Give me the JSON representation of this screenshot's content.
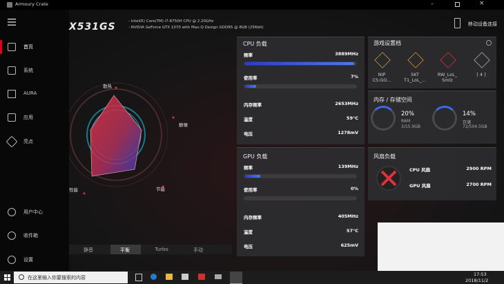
{
  "window": {
    "title": "Armoury Crate"
  },
  "sidebar": {
    "items": [
      "首页",
      "系统",
      "AURA",
      "应用",
      "亮点"
    ],
    "bottom_items": [
      "用户中心",
      "收件箱",
      "设置"
    ]
  },
  "header": {
    "model": "X531GS",
    "specs": [
      "Intel(R) Core(TM) i7-8750H CPU @ 2.20GHz",
      "NVIDIA GeForce GTX 1070 with Max-Q Design GDDR5 @ 8GB (256bit)"
    ],
    "mobile_link": "移动设备连接"
  },
  "radar": {
    "labels": [
      "散热",
      "静噪",
      "节能",
      "性能"
    ]
  },
  "modes": {
    "tabs": [
      "静音",
      "平衡",
      "Turbo",
      "手动"
    ]
  },
  "cpu": {
    "title": "CPU 负载",
    "rows": [
      {
        "label": "频率",
        "value": "3889MHz"
      },
      {
        "label": "使用率",
        "value": "7%"
      },
      {
        "label": "内存频率",
        "value": "2653MHz"
      },
      {
        "label": "温度",
        "value": "59°C"
      },
      {
        "label": "电压",
        "value": "1278mV"
      }
    ]
  },
  "gpu": {
    "title": "GPU 负载",
    "rows": [
      {
        "label": "频率",
        "value": "139MHz"
      },
      {
        "label": "使用率",
        "value": "0%"
      },
      {
        "label": "内存频率",
        "value": "405MHz"
      },
      {
        "label": "温度",
        "value": "57°C"
      },
      {
        "label": "电压",
        "value": "625mV"
      }
    ]
  },
  "profiles": {
    "title": "游戏设置档",
    "items": [
      {
        "line1": "NIP",
        "line2": "CS:GO..."
      },
      {
        "line1": "SKT",
        "line2": "T1_LoL_..."
      },
      {
        "line1": "RW_LoL_",
        "line2": "Smlz"
      },
      {
        "line1": "[ 4 ]"
      }
    ]
  },
  "storage": {
    "title": "内存 / 存储空间",
    "gauges": [
      {
        "percent": "20%",
        "name": "RAM",
        "detail": "3/15.9GB"
      },
      {
        "percent": "14%",
        "name": "存储",
        "detail": "72/504.5GB"
      }
    ]
  },
  "fans": {
    "title": "风扇负载",
    "rows": [
      {
        "label": "CPU 风扇",
        "value": "2900 RPM"
      },
      {
        "label": "GPU 风扇",
        "value": "2700 RPM"
      }
    ]
  },
  "taskbar": {
    "search": "在这里输入你要搜索的内容",
    "time": "17:53",
    "date": "2018/11/2"
  }
}
